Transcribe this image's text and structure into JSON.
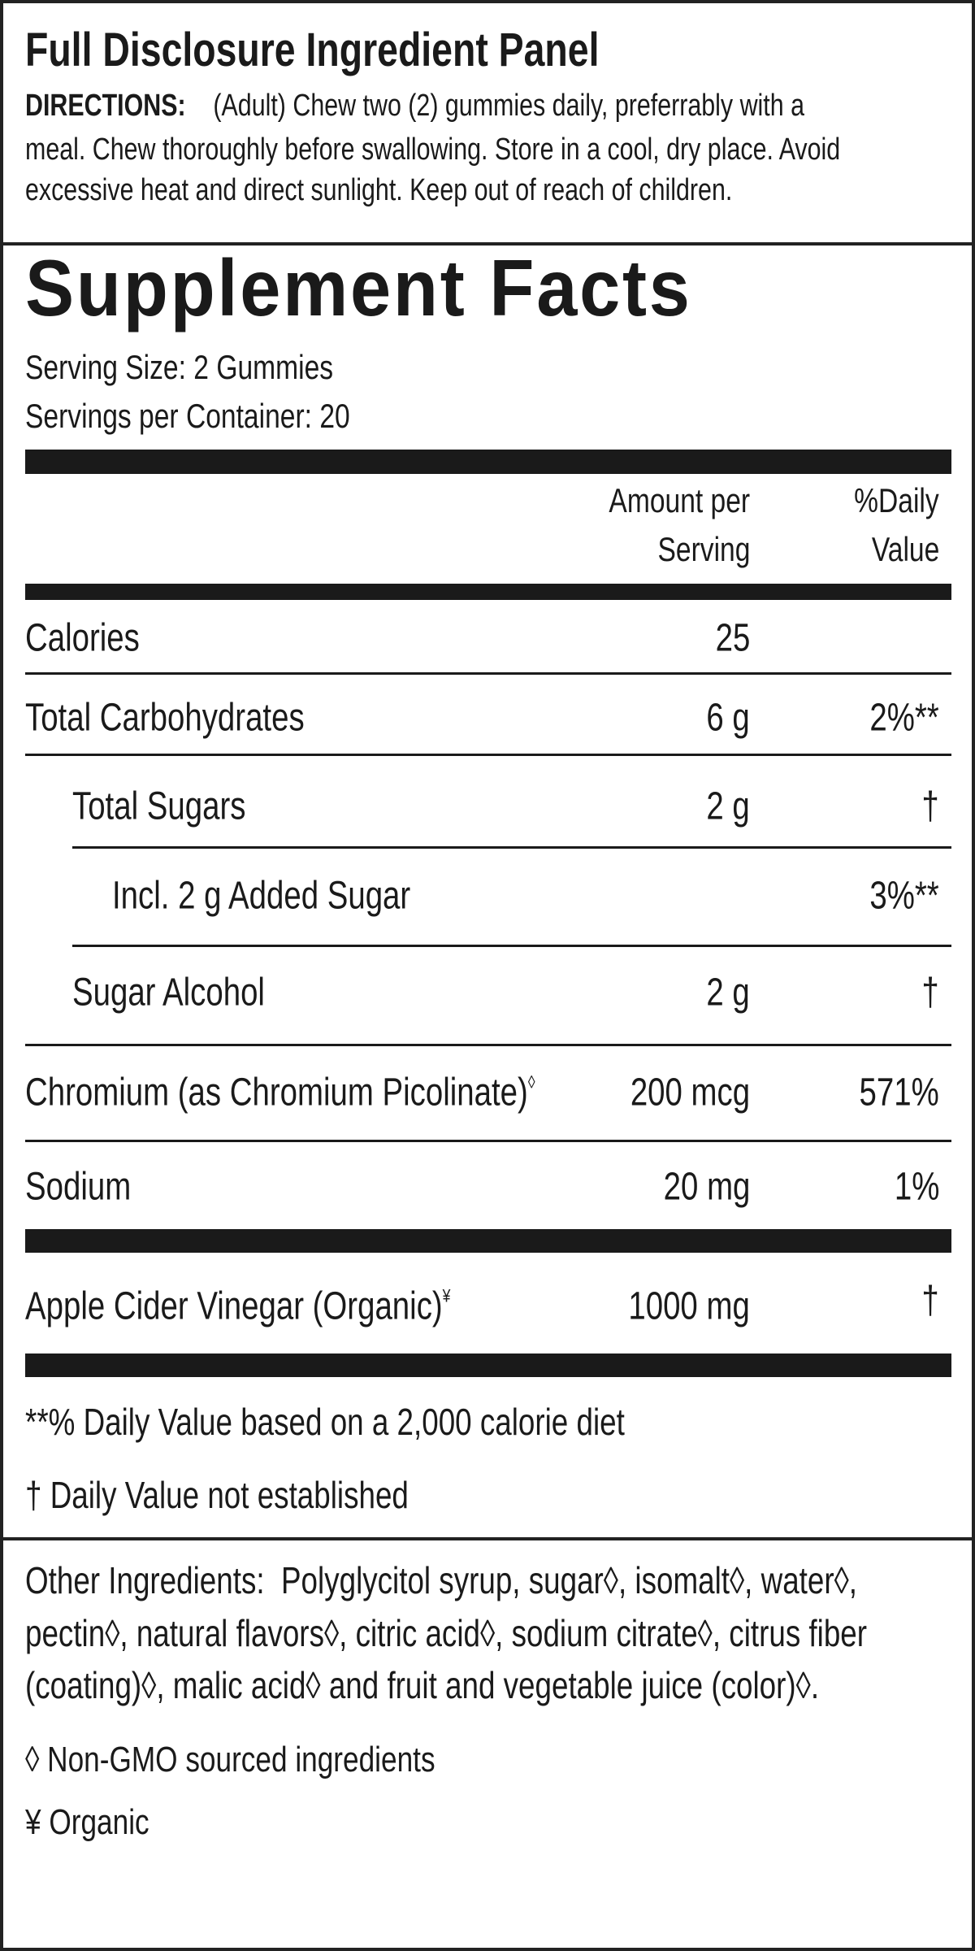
{
  "panel_title": "Full Disclosure Ingredient Panel",
  "directions": {
    "label": "DIRECTIONS:",
    "line1": "(Adult) Chew two (2) gummies daily, preferrably with a",
    "line2": "meal. Chew thoroughly before swallowing. Store in a cool, dry place. Avoid",
    "line3": "excessive heat and direct sunlight. Keep out of reach of children."
  },
  "facts": {
    "title": "Supplement Facts",
    "serving_size": "Serving Size:  2 Gummies",
    "servings_per_container": "Servings per Container:  20",
    "header": {
      "amount_line1": "Amount per",
      "amount_line2": "Serving",
      "dv_line1": "%Daily",
      "dv_line2": "Value"
    },
    "rows": [
      {
        "name": "Calories",
        "amount": "25",
        "dv": ""
      },
      {
        "name": "Total Carbohydrates",
        "amount": "6 g",
        "dv": "2%**"
      },
      {
        "name": "Total Sugars",
        "amount": "2 g",
        "dv": "†"
      },
      {
        "name": "Incl. 2 g Added Sugar",
        "amount": "",
        "dv": "3%**"
      },
      {
        "name": "Sugar Alcohol",
        "amount": "2 g",
        "dv": "†"
      },
      {
        "name": "Chromium (as Chromium Picolinate)",
        "mark": "◊",
        "amount": "200 mcg",
        "dv": "571%"
      },
      {
        "name": "Sodium",
        "amount": "20 mg",
        "dv": "1%"
      },
      {
        "name": "Apple Cider Vinegar (Organic)",
        "mark": "¥",
        "amount": "1000 mg",
        "dv": "†"
      }
    ],
    "footnote1": "**% Daily Value based on a 2,000 calorie diet",
    "footnote2": "† Daily Value not established"
  },
  "other_ingredients": {
    "label": "Other Ingredients:",
    "text": "Polyglycitol syrup, sugar◊, isomalt◊, water◊, pectin◊, natural flavors◊, citric acid◊, sodium citrate◊, citrus fiber (coating)◊, malic acid◊ and fruit and vegetable juice (color)◊."
  },
  "legend": {
    "non_gmo": "◊ Non-GMO sourced ingredients",
    "organic": "¥ Organic"
  }
}
